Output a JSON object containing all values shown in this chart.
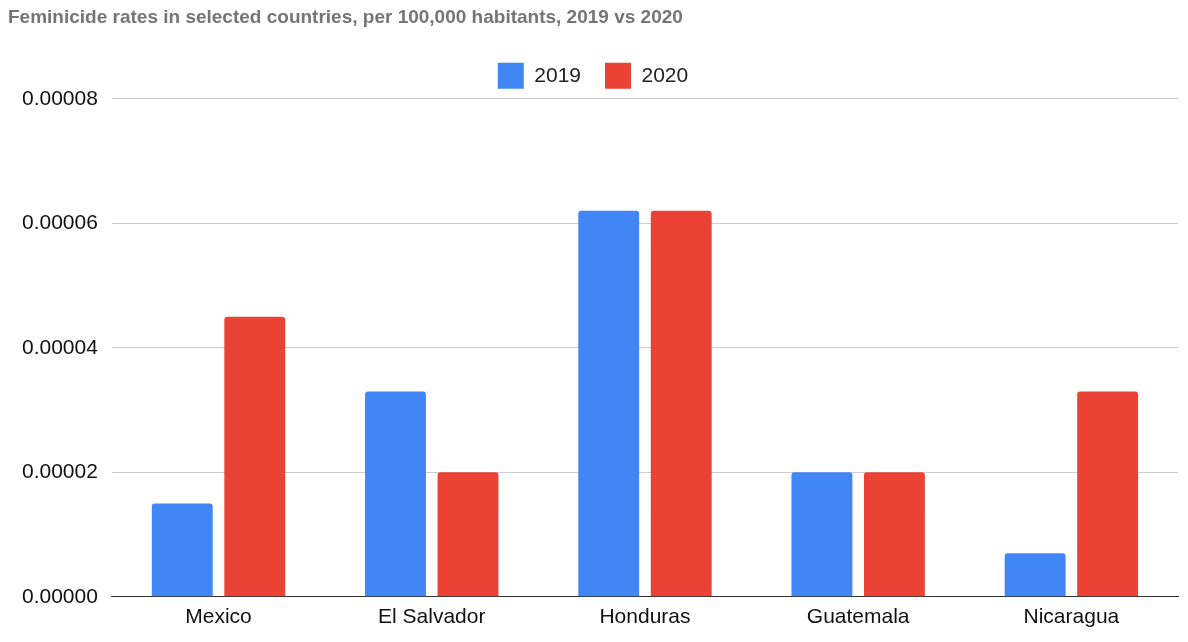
{
  "chart_data": {
    "type": "bar",
    "title": "Feminicide rates in selected countries, per 100,000 habitants, 2019 vs 2020",
    "categories": [
      "Mexico",
      "El Salvador",
      "Honduras",
      "Guatemala",
      "Nicaragua"
    ],
    "series": [
      {
        "name": "2019",
        "color": "#4285f4",
        "values": [
          1.5e-05,
          3.3e-05,
          6.2e-05,
          2e-05,
          7e-06
        ]
      },
      {
        "name": "2020",
        "color": "#ea4335",
        "values": [
          4.5e-05,
          2e-05,
          6.2e-05,
          2e-05,
          3.3e-05
        ]
      }
    ],
    "ylim": [
      0,
      8e-05
    ],
    "yticks": [
      {
        "value": 0,
        "label": "0.00000"
      },
      {
        "value": 2e-05,
        "label": "0.00002"
      },
      {
        "value": 4e-05,
        "label": "0.00004"
      },
      {
        "value": 6e-05,
        "label": "0.00006"
      },
      {
        "value": 8e-05,
        "label": "0.00008"
      }
    ],
    "grid": "y",
    "legend": "top"
  }
}
